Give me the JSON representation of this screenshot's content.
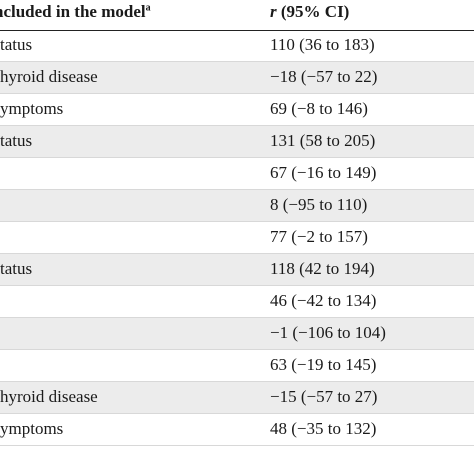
{
  "table": {
    "header": {
      "col1_text": "ncluded in the model",
      "col1_sup": "a",
      "col2_r": "r",
      "col2_ci": " (95% CI)"
    },
    "rows": [
      {
        "variable": "tatus",
        "r_ci": "110 (36 to 183)"
      },
      {
        "variable": "hyroid disease",
        "r_ci": "−18 (−57 to 22)"
      },
      {
        "variable": "ymptoms",
        "r_ci": "69 (−8 to 146)"
      },
      {
        "variable": "tatus",
        "r_ci": "131 (58 to 205)"
      },
      {
        "variable": "",
        "r_ci": "67 (−16 to 149)"
      },
      {
        "variable": "",
        "r_ci": "8 (−95 to 110)"
      },
      {
        "variable": "",
        "r_ci": "77 (−2 to 157)"
      },
      {
        "variable": "tatus",
        "r_ci": "118 (42 to 194)"
      },
      {
        "variable": "",
        "r_ci": "46 (−42 to 134)"
      },
      {
        "variable": "",
        "r_ci": "−1 (−106 to 104)"
      },
      {
        "variable": "",
        "r_ci": "63 (−19 to 145)"
      },
      {
        "variable": "hyroid disease",
        "r_ci": "−15 (−57 to 27)"
      },
      {
        "variable": "ymptoms",
        "r_ci": "48 (−35 to 132)"
      }
    ]
  },
  "colors": {
    "shaded_row": "#ececec",
    "text": "#1a1a1a",
    "rule": "#222222"
  }
}
